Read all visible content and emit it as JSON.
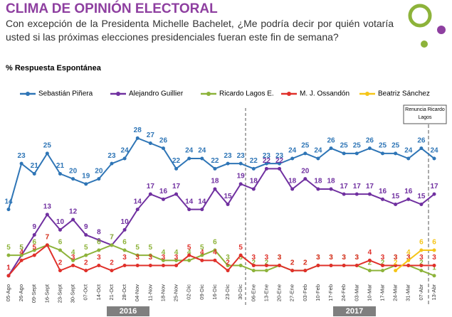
{
  "chart_data": {
    "type": "line",
    "title": "CLIMA DE OPINIÓN ELECTORAL",
    "subtitle": "Con excepción de la Presidenta Michelle Bachelet, ¿Me podría decir por quién votaría usted si las próximas elecciones presidenciales fueran este fin de semana?",
    "note": "% Respuesta Espontánea",
    "annotation": "Renuncia Ricardo Lagos",
    "year_labels": [
      "2016",
      "2017"
    ],
    "categories": [
      "05-Ago",
      "26-Ago",
      "09-Sept",
      "16-Sept",
      "23-Sept",
      "30-Sept",
      "07-Oct",
      "14-Oct",
      "21-Oct",
      "28-Oct",
      "04-Nov",
      "11-Nov",
      "18-Nov",
      "25-Nov",
      "02-Dic",
      "09-Dic",
      "16-Dic",
      "23-Dic",
      "30-Dic",
      "06-Ene",
      "13-Ene",
      "20-Ene",
      "27-Ene",
      "03-Feb",
      "10-Feb",
      "17-Feb",
      "24-Feb",
      "03-Mar",
      "10-Mar",
      "17-Mar",
      "24-Mar",
      "31-Mar",
      "07-Abr",
      "13-Abr"
    ],
    "ylim": [
      0,
      30
    ],
    "series": [
      {
        "name": "Sebastián Piñera",
        "color": "#2e75b6",
        "values": [
          14,
          23,
          21,
          25,
          21,
          20,
          19,
          20,
          23,
          24,
          28,
          27,
          26,
          22,
          24,
          24,
          22,
          23,
          23,
          22,
          23,
          23,
          24,
          25,
          24,
          26,
          25,
          25,
          26,
          25,
          25,
          24,
          26,
          24
        ]
      },
      {
        "name": "Alejandro  Guillier",
        "color": "#7030a0",
        "values": [
          1,
          5,
          9,
          13,
          10,
          12,
          9,
          8,
          7,
          10,
          14,
          17,
          16,
          17,
          14,
          14,
          18,
          15,
          19,
          18,
          22,
          22,
          18,
          20,
          18,
          18,
          17,
          17,
          17,
          16,
          15,
          16,
          15,
          17
        ]
      },
      {
        "name": "Ricardo Lagos E.",
        "color": "#8db33a",
        "values": [
          5,
          5,
          6,
          7,
          6,
          4,
          5,
          6,
          7,
          6,
          5,
          5,
          4,
          4,
          4,
          5,
          6,
          3,
          3,
          2,
          2,
          3,
          2,
          2,
          3,
          3,
          3,
          3,
          2,
          2,
          3,
          3,
          2,
          1
        ]
      },
      {
        "name": "M. J. Ossandón",
        "color": "#e0302a",
        "values": [
          1,
          4,
          5,
          7,
          2,
          3,
          2,
          3,
          2,
          3,
          3,
          3,
          3,
          3,
          5,
          4,
          4,
          2,
          5,
          3,
          3,
          3,
          2,
          2,
          3,
          3,
          3,
          3,
          4,
          3,
          3,
          3,
          3,
          3
        ]
      },
      {
        "name": "Beatriz Sánchez",
        "color": "#f5c518",
        "values": [
          null,
          null,
          null,
          null,
          null,
          null,
          null,
          null,
          null,
          null,
          null,
          null,
          null,
          null,
          null,
          null,
          null,
          null,
          null,
          null,
          null,
          null,
          null,
          null,
          null,
          null,
          null,
          null,
          null,
          null,
          2,
          4,
          6,
          6
        ]
      }
    ]
  }
}
